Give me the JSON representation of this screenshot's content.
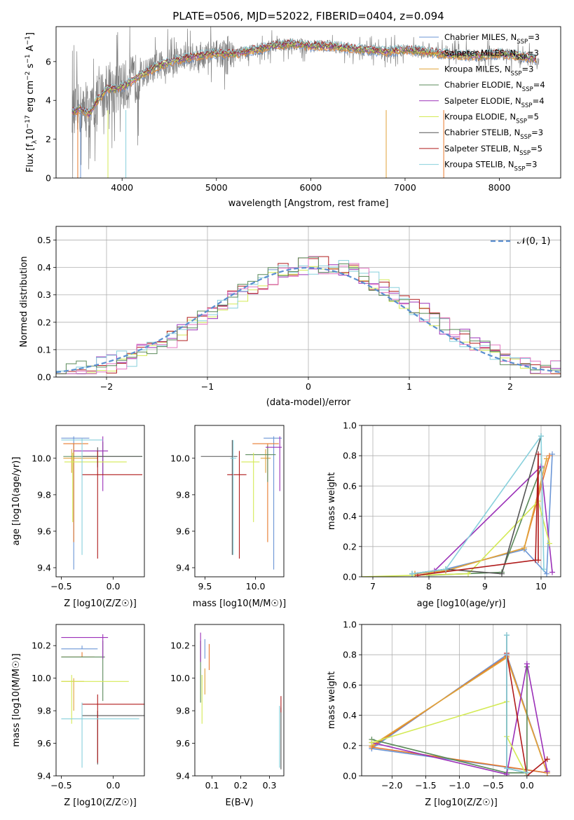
{
  "figure": {
    "title": "PLATE=0506, MJD=52022, FIBERID=0404, z=0.094",
    "colors": {
      "Chabrier MILES": "#6b96d6",
      "Salpeter MILES": "#e8792c",
      "Kroupa MILES": "#e0a33a",
      "Chabrier ELODIE": "#5a8a5a",
      "Salpeter ELODIE": "#9b30b8",
      "Kroupa ELODIE": "#d4ea55",
      "Chabrier STELIB": "#555555",
      "Salpeter STELIB": "#b01c1c",
      "Kroupa STELIB": "#88d0dc",
      "data": "#808080",
      "normal": "#5b8fd0",
      "grid": "#b0b0b0"
    }
  },
  "chart_data": [
    {
      "id": "spectrum",
      "type": "line",
      "title": "PLATE=0506, MJD=52022, FIBERID=0404, z=0.094",
      "xlabel": "wavelength [Angstrom, rest frame]",
      "ylabel": "Flux [f_λ 10^-17 erg cm^-2 s^-1 A^-1]",
      "xlim": [
        3300,
        8650
      ],
      "ylim": [
        0,
        7.8
      ],
      "xticks": [
        4000,
        5000,
        6000,
        7000,
        8000
      ],
      "yticks": [
        0,
        2,
        4,
        6
      ],
      "legend_position": "top-right",
      "grid": false,
      "observed_continuum": {
        "x": [
          3470,
          3550,
          3650,
          3750,
          3850,
          3950,
          4050,
          4200,
          4400,
          4600,
          4800,
          5000,
          5200,
          5400,
          5600,
          5800,
          6000,
          6200,
          6400,
          6600,
          6800,
          7000,
          7200,
          7400,
          7600,
          7800,
          8000,
          8200,
          8400
        ],
        "y": [
          3.4,
          3.55,
          3.3,
          4.1,
          4.6,
          4.6,
          4.8,
          5.3,
          5.8,
          6.1,
          6.3,
          6.4,
          6.4,
          6.6,
          6.8,
          6.9,
          6.8,
          6.8,
          6.7,
          6.6,
          6.5,
          6.6,
          6.5,
          6.4,
          6.3,
          6.3,
          6.4,
          6.3,
          6.1
        ]
      },
      "series": [
        {
          "name": "Chabrier MILES",
          "nssp": "3"
        },
        {
          "name": "Salpeter MILES",
          "nssp": "3"
        },
        {
          "name": "Kroupa MILES",
          "nssp": "3"
        },
        {
          "name": "Chabrier ELODIE",
          "nssp": "4"
        },
        {
          "name": "Salpeter ELODIE",
          "nssp": "4"
        },
        {
          "name": "Kroupa ELODIE",
          "nssp": "5"
        },
        {
          "name": "Chabrier STELIB",
          "nssp": "3"
        },
        {
          "name": "Salpeter STELIB",
          "nssp": "5"
        },
        {
          "name": "Kroupa STELIB",
          "nssp": "3"
        }
      ]
    },
    {
      "id": "residuals",
      "type": "step",
      "xlabel": "(data-model)/error",
      "ylabel": "Normed distribution",
      "xlim": [
        -2.5,
        2.5
      ],
      "ylim": [
        0,
        0.55
      ],
      "xticks": [
        -2,
        -1,
        0,
        1,
        2
      ],
      "yticks": [
        0.0,
        0.1,
        0.2,
        0.3,
        0.4,
        0.5
      ],
      "grid": true,
      "legend_position": "top-right",
      "normal_label": "𝒩(0, 1)",
      "bin_width": 0.1
    },
    {
      "id": "age_vs_Z",
      "type": "errorbar",
      "xlabel": "Z [log10(Z/Z☉)]",
      "ylabel": "age  [log10(age/yr)]",
      "xlim": [
        -0.55,
        0.3
      ],
      "ylim": [
        9.35,
        10.18
      ],
      "xticks": [
        -0.5,
        0.0
      ],
      "yticks": [
        9.4,
        9.6,
        9.8,
        10.0
      ],
      "points": [
        {
          "series": "Chabrier MILES",
          "x": -0.38,
          "xerr": [
            0.12,
            0.15
          ],
          "y": 10.11,
          "yerr": [
            0.72,
            0.01
          ]
        },
        {
          "series": "Salpeter MILES",
          "x": -0.38,
          "xerr": [
            0.1,
            0.14
          ],
          "y": 10.08,
          "yerr": [
            0.54,
            0.0
          ]
        },
        {
          "series": "Kroupa MILES",
          "x": -0.4,
          "xerr": [
            0.08,
            0.25
          ],
          "y": 10.0,
          "yerr": [
            0.08,
            0.05
          ]
        },
        {
          "series": "Chabrier ELODIE",
          "x": -0.1,
          "xerr": [
            0.38,
            0.38
          ],
          "y": 10.01,
          "yerr": [
            0.1,
            0.08
          ]
        },
        {
          "series": "Salpeter ELODIE",
          "x": -0.1,
          "xerr": [
            0.28,
            0.05
          ],
          "y": 10.04,
          "yerr": [
            0.22,
            0.08
          ]
        },
        {
          "series": "Kroupa ELODIE",
          "x": -0.39,
          "xerr": [
            0.08,
            0.52
          ],
          "y": 9.98,
          "yerr": [
            0.33,
            0.05
          ]
        },
        {
          "series": "Chabrier STELIB",
          "x": -0.15,
          "xerr": [
            0.15,
            0.43
          ],
          "y": 10.01,
          "yerr": [
            0.06,
            0.05
          ]
        },
        {
          "series": "Salpeter STELIB",
          "x": -0.15,
          "xerr": [
            0.15,
            0.43
          ],
          "y": 9.91,
          "yerr": [
            0.46,
            0.13
          ]
        },
        {
          "series": "Kroupa STELIB",
          "x": -0.3,
          "xerr": [
            0.2,
            0.2
          ],
          "y": 10.1,
          "yerr": [
            0.63,
            0.01
          ]
        }
      ]
    },
    {
      "id": "age_vs_mass",
      "type": "errorbar",
      "xlabel": "mass [log10(M/M☉)]",
      "ylabel": "",
      "xlim": [
        9.4,
        10.28
      ],
      "ylim": [
        9.35,
        10.18
      ],
      "xticks": [
        9.5,
        10.0
      ],
      "yticks": [
        9.4,
        9.6,
        9.8,
        10.0
      ],
      "points": [
        {
          "series": "Chabrier MILES",
          "x": 10.18,
          "xerr": [
            0.1,
            0.08
          ],
          "y": 10.11,
          "yerr": [
            0.72,
            0.01
          ]
        },
        {
          "series": "Salpeter MILES",
          "x": 10.12,
          "xerr": [
            0.15,
            0.11
          ],
          "y": 10.08,
          "yerr": [
            0.54,
            0.0
          ]
        },
        {
          "series": "Kroupa MILES",
          "x": 10.1,
          "xerr": [
            0.05,
            0.05
          ],
          "y": 10.0,
          "yerr": [
            0.08,
            0.05
          ]
        },
        {
          "series": "Chabrier ELODIE",
          "x": 10.12,
          "xerr": [
            0.22,
            0.08
          ],
          "y": 10.02,
          "yerr": [
            0.15,
            0.05
          ]
        },
        {
          "series": "Salpeter ELODIE",
          "x": 10.24,
          "xerr": [
            0.14,
            0.02
          ],
          "y": 10.06,
          "yerr": [
            0.24,
            0.06
          ]
        },
        {
          "series": "Kroupa ELODIE",
          "x": 9.98,
          "xerr": [
            0.12,
            0.06
          ],
          "y": 9.98,
          "yerr": [
            0.33,
            0.05
          ]
        },
        {
          "series": "Chabrier STELIB",
          "x": 9.77,
          "xerr": [
            0.31,
            0.05
          ],
          "y": 10.01,
          "yerr": [
            0.54,
            0.09
          ]
        },
        {
          "series": "Salpeter STELIB",
          "x": 9.84,
          "xerr": [
            0.12,
            0.07
          ],
          "y": 9.91,
          "yerr": [
            0.46,
            0.13
          ]
        },
        {
          "series": "Kroupa STELIB",
          "x": 9.78,
          "xerr": [
            0.03,
            0.03
          ],
          "y": 10.0,
          "yerr": [
            0.53,
            0.1
          ]
        }
      ]
    },
    {
      "id": "weight_vs_age",
      "type": "line",
      "xlabel": "age  [log10(age/yr)]",
      "ylabel": "mass weight",
      "xlim": [
        6.8,
        10.35
      ],
      "ylim": [
        0,
        1.0
      ],
      "xticks": [
        7,
        8,
        9,
        10
      ],
      "yticks": [
        0.0,
        0.2,
        0.4,
        0.6,
        0.8,
        1.0
      ],
      "grid": true,
      "series": [
        {
          "name": "Chabrier MILES",
          "x": [
            7.7,
            8.3,
            9.7,
            10.1,
            10.2
          ],
          "y": [
            0.02,
            0.05,
            0.18,
            0.02,
            0.81
          ]
        },
        {
          "name": "Salpeter MILES",
          "x": [
            7.75,
            8.3,
            9.7,
            10.15
          ],
          "y": [
            0.02,
            0.04,
            0.19,
            0.8
          ]
        },
        {
          "name": "Kroupa MILES",
          "x": [
            7.75,
            8.3,
            9.7,
            10.1
          ],
          "y": [
            0.02,
            0.04,
            0.19,
            0.78
          ]
        },
        {
          "name": "Chabrier ELODIE",
          "x": [
            8.0,
            9.3,
            10.0
          ],
          "y": [
            0.01,
            0.03,
            0.72
          ]
        },
        {
          "name": "Salpeter ELODIE",
          "x": [
            8.1,
            10.0,
            10.2
          ],
          "y": [
            0.04,
            0.73,
            0.03
          ]
        },
        {
          "name": "Kroupa ELODIE",
          "x": [
            6.8,
            8.7,
            9.95,
            10.15
          ],
          "y": [
            0.0,
            0.02,
            0.5,
            0.22
          ]
        },
        {
          "name": "Chabrier STELIB",
          "x": [
            7.7,
            8.3,
            9.3,
            10.0
          ],
          "y": [
            0.02,
            0.05,
            0.02,
            0.93
          ]
        },
        {
          "name": "Salpeter STELIB",
          "x": [
            7.8,
            9.9,
            9.95,
            9.95
          ],
          "y": [
            0.01,
            0.11,
            0.81,
            0.11
          ]
        },
        {
          "name": "Kroupa STELIB",
          "x": [
            7.7,
            8.3,
            10.0,
            10.05
          ],
          "y": [
            0.02,
            0.05,
            0.93,
            0.05
          ]
        }
      ]
    },
    {
      "id": "mass_vs_Z",
      "type": "errorbar",
      "xlabel": "Z [log10(Z/Z☉)]",
      "ylabel": "mass [log10(M/M☉)]",
      "xlim": [
        -0.55,
        0.3
      ],
      "ylim": [
        9.4,
        10.33
      ],
      "xticks": [
        -0.5,
        0.0
      ],
      "yticks": [
        9.4,
        9.6,
        9.8,
        10.0,
        10.2
      ],
      "points": [
        {
          "series": "Chabrier MILES",
          "x": -0.3,
          "xerr": [
            0.2,
            0.15
          ],
          "y": 10.18,
          "yerr": [
            0.0,
            0.02
          ]
        },
        {
          "series": "Salpeter MILES",
          "x": -0.3,
          "xerr": [
            0.2,
            0.12
          ],
          "y": 10.13,
          "yerr": [
            0.0,
            0.03
          ]
        },
        {
          "series": "Kroupa MILES",
          "x": -0.38,
          "xerr": [
            0.12,
            0.1
          ],
          "y": 9.98,
          "yerr": [
            0.18,
            0.02
          ]
        },
        {
          "series": "Chabrier ELODIE",
          "x": -0.1,
          "xerr": [
            0.4,
            0.02
          ],
          "y": 10.13,
          "yerr": [
            0.27,
            0.1
          ]
        },
        {
          "series": "Salpeter ELODIE",
          "x": -0.1,
          "xerr": [
            0.4,
            0.05
          ],
          "y": 10.25,
          "yerr": [
            0.13,
            0.02
          ]
        },
        {
          "series": "Kroupa ELODIE",
          "x": -0.4,
          "xerr": [
            0.1,
            0.55
          ],
          "y": 9.98,
          "yerr": [
            0.26,
            0.04
          ]
        },
        {
          "series": "Chabrier STELIB",
          "x": -0.15,
          "xerr": [
            0.15,
            0.45
          ],
          "y": 9.77,
          "yerr": [
            0.3,
            0.03
          ]
        },
        {
          "series": "Salpeter STELIB",
          "x": -0.15,
          "xerr": [
            0.15,
            0.45
          ],
          "y": 9.84,
          "yerr": [
            0.36,
            0.06
          ]
        },
        {
          "series": "Kroupa STELIB",
          "x": -0.3,
          "xerr": [
            0.2,
            0.55
          ],
          "y": 9.75,
          "yerr": [
            0.3,
            0.1
          ]
        }
      ]
    },
    {
      "id": "mass_vs_EBV",
      "type": "errorbar",
      "xlabel": "E(B-V)",
      "ylabel": "",
      "xlim": [
        0.04,
        0.35
      ],
      "ylim": [
        9.4,
        10.33
      ],
      "xticks": [
        0.1,
        0.2,
        0.3
      ],
      "yticks": [
        9.4,
        9.6,
        9.8,
        10.0,
        10.2
      ],
      "points": [
        {
          "series": "Chabrier MILES",
          "x": 0.075,
          "y": 10.18,
          "yerr": [
            0.06,
            0.06
          ]
        },
        {
          "series": "Salpeter MILES",
          "x": 0.09,
          "y": 10.13,
          "yerr": [
            0.08,
            0.08
          ]
        },
        {
          "series": "Kroupa MILES",
          "x": 0.075,
          "y": 9.98,
          "yerr": [
            0.08,
            0.08
          ]
        },
        {
          "series": "Chabrier ELODIE",
          "x": 0.06,
          "y": 10.13,
          "yerr": [
            0.28,
            0.1
          ]
        },
        {
          "series": "Salpeter ELODIE",
          "x": 0.06,
          "y": 10.25,
          "yerr": [
            0.15,
            0.03
          ]
        },
        {
          "series": "Kroupa ELODIE",
          "x": 0.065,
          "y": 9.98,
          "yerr": [
            0.26,
            0.04
          ]
        },
        {
          "series": "Chabrier STELIB",
          "x": 0.34,
          "y": 9.77,
          "yerr": [
            0.33,
            0.05
          ]
        },
        {
          "series": "Salpeter STELIB",
          "x": 0.34,
          "y": 9.84,
          "yerr": [
            0.05,
            0.05
          ]
        },
        {
          "series": "Kroupa STELIB",
          "x": 0.335,
          "y": 9.75,
          "yerr": [
            0.3,
            0.08
          ]
        }
      ]
    },
    {
      "id": "weight_vs_Z",
      "type": "line",
      "xlabel": "Z [log10(Z/Z☉)]",
      "ylabel": "mass weight",
      "xlim": [
        -2.45,
        0.5
      ],
      "ylim": [
        0,
        1.0
      ],
      "xticks": [
        -2.0,
        -1.5,
        -1.0,
        -0.5,
        0.0
      ],
      "yticks": [
        0.0,
        0.2,
        0.4,
        0.6,
        0.8,
        1.0
      ],
      "grid": true,
      "series": [
        {
          "name": "Chabrier MILES",
          "x": [
            -2.3,
            -0.3,
            0.3,
            -2.3
          ],
          "y": [
            0.18,
            0.8,
            0.02,
            0.18
          ]
        },
        {
          "name": "Salpeter MILES",
          "x": [
            -2.3,
            -0.3,
            0.3,
            -2.3
          ],
          "y": [
            0.19,
            0.79,
            0.02,
            0.19
          ]
        },
        {
          "name": "Kroupa MILES",
          "x": [
            -2.3,
            -0.3,
            0.3
          ],
          "y": [
            0.2,
            0.78,
            0.02
          ]
        },
        {
          "name": "Chabrier ELODIE",
          "x": [
            -2.3,
            -0.3,
            0.0,
            0.0
          ],
          "y": [
            0.24,
            0.02,
            0.02,
            0.72
          ]
        },
        {
          "name": "Salpeter ELODIE",
          "x": [
            -2.3,
            -0.3,
            0.0,
            0.3
          ],
          "y": [
            0.22,
            0.01,
            0.74,
            0.03
          ]
        },
        {
          "name": "Kroupa ELODIE",
          "x": [
            -2.3,
            -0.3,
            -0.3,
            0.0
          ],
          "y": [
            0.22,
            0.49,
            0.26,
            0.0
          ]
        },
        {
          "name": "Chabrier STELIB",
          "x": [
            -0.3,
            -0.3,
            0.0
          ],
          "y": [
            0.93,
            0.05,
            0.02
          ]
        },
        {
          "name": "Salpeter STELIB",
          "x": [
            -0.3,
            0.0,
            0.3
          ],
          "y": [
            0.81,
            0.0,
            0.11
          ]
        },
        {
          "name": "Kroupa STELIB",
          "x": [
            -0.3,
            -0.3,
            0.0
          ],
          "y": [
            0.93,
            0.05,
            0.02
          ]
        }
      ]
    }
  ]
}
